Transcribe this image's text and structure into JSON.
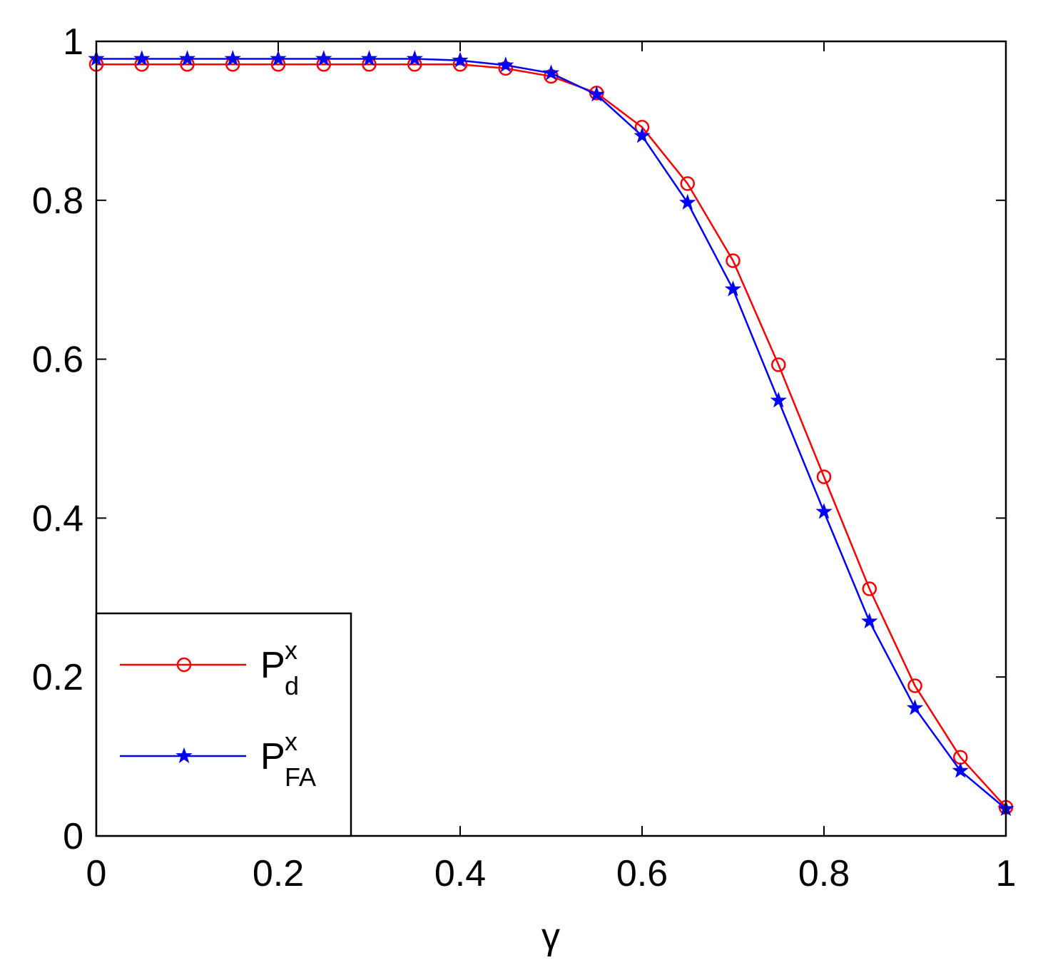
{
  "chart_data": {
    "type": "line",
    "x_label": "γ",
    "x": [
      0,
      0.05,
      0.1,
      0.15,
      0.2,
      0.25,
      0.3,
      0.35,
      0.4,
      0.45,
      0.5,
      0.55,
      0.6,
      0.65,
      0.7,
      0.75,
      0.8,
      0.85,
      0.9,
      0.95,
      1
    ],
    "series": [
      {
        "name": {
          "base": "P",
          "sup": "x",
          "sub": "d"
        },
        "color": "#ff0000",
        "marker": "circle",
        "values": [
          0.971,
          0.971,
          0.971,
          0.971,
          0.971,
          0.971,
          0.971,
          0.971,
          0.971,
          0.966,
          0.956,
          0.935,
          0.892,
          0.821,
          0.724,
          0.593,
          0.452,
          0.311,
          0.189,
          0.099,
          0.036
        ]
      },
      {
        "name": {
          "base": "P",
          "sup": "x",
          "sub": "FA"
        },
        "color": "#0000ff",
        "marker": "star",
        "values": [
          0.978,
          0.978,
          0.978,
          0.978,
          0.978,
          0.978,
          0.978,
          0.978,
          0.976,
          0.97,
          0.96,
          0.933,
          0.881,
          0.797,
          0.688,
          0.548,
          0.408,
          0.27,
          0.161,
          0.082,
          0.034
        ]
      }
    ],
    "xlim": [
      0,
      1
    ],
    "ylim": [
      0,
      1
    ],
    "xticks": [
      0,
      0.2,
      0.4,
      0.6,
      0.8,
      1
    ],
    "yticks": [
      0,
      0.2,
      0.4,
      0.6,
      0.8,
      1
    ],
    "legend": "lower left"
  }
}
